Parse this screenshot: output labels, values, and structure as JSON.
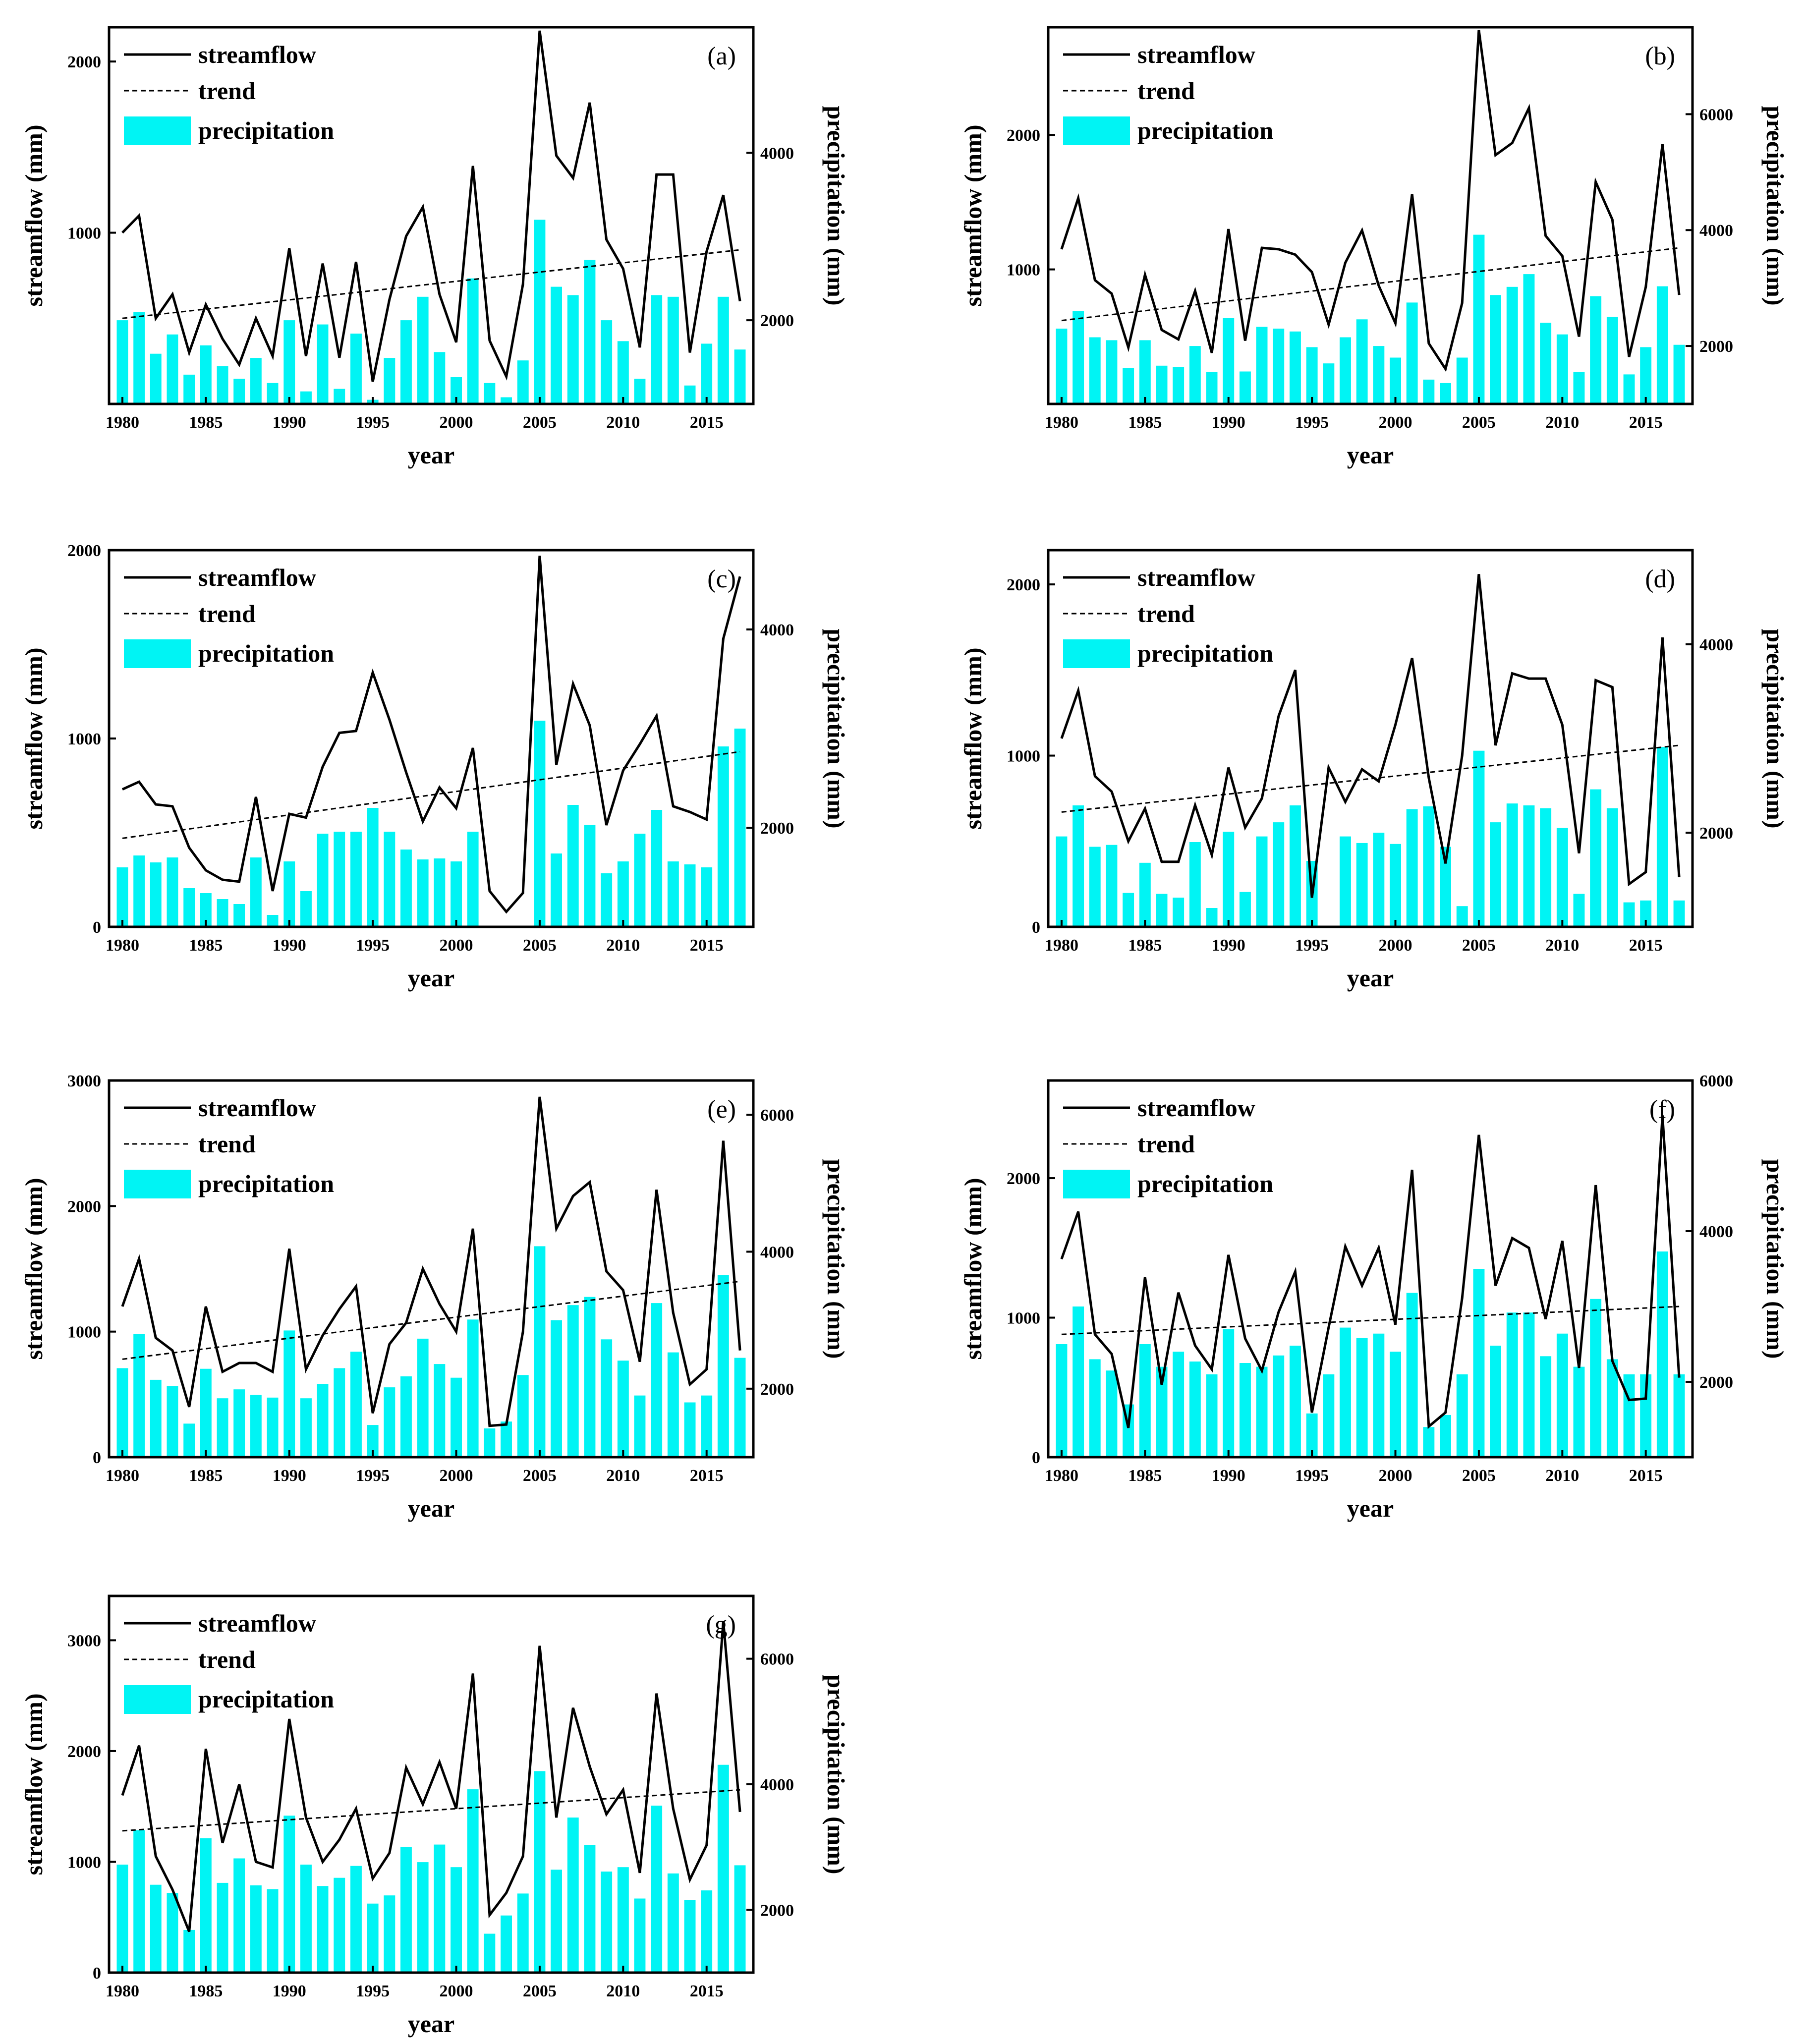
{
  "figure": {
    "x_axis_label": "year",
    "left_axis_label": "streamflow (mm)",
    "right_axis_label": "precipitation (mm)",
    "legend": {
      "streamflow": "streamflow",
      "trend": "trend",
      "precipitation": "precipitation"
    },
    "colors": {
      "bar": "#00f4f4",
      "line": "#000000",
      "axis": "#000000"
    }
  },
  "chart_data": [
    {
      "type": "bar+line",
      "panel_label": "(a)",
      "years": [
        1980,
        1981,
        1982,
        1983,
        1984,
        1985,
        1986,
        1987,
        1988,
        1989,
        1990,
        1991,
        1992,
        1993,
        1994,
        1995,
        1996,
        1997,
        1998,
        1999,
        2000,
        2001,
        2002,
        2003,
        2004,
        2005,
        2006,
        2007,
        2008,
        2009,
        2010,
        2011,
        2012,
        2013,
        2014,
        2015,
        2016,
        2017
      ],
      "streamflow": [
        1000,
        1100,
        500,
        640,
        300,
        580,
        380,
        230,
        500,
        280,
        910,
        280,
        820,
        270,
        830,
        130,
        610,
        980,
        1150,
        640,
        360,
        1390,
        370,
        160,
        700,
        2180,
        1450,
        1320,
        1760,
        960,
        790,
        330,
        1340,
        1340,
        300,
        890,
        1220,
        600
      ],
      "trend": [
        [
          1980,
          500
        ],
        [
          2017,
          900
        ]
      ],
      "precipitation": [
        2000,
        2100,
        1600,
        1830,
        1350,
        1700,
        1450,
        1300,
        1550,
        1250,
        2000,
        1150,
        1950,
        1180,
        1840,
        1050,
        1550,
        2000,
        2280,
        1620,
        1320,
        2500,
        1250,
        1080,
        1520,
        3200,
        2400,
        2300,
        2720,
        2000,
        1750,
        1300,
        2300,
        2280,
        1220,
        1720,
        2280,
        1650
      ],
      "ylim_left": [
        0,
        2200
      ],
      "yticks_left": [
        1000,
        2000
      ],
      "ylim_right": [
        1000,
        5500
      ],
      "yticks_right": [
        2000,
        4000
      ],
      "xticks": [
        1980,
        1985,
        1990,
        1995,
        2000,
        2005,
        2010,
        2015
      ]
    },
    {
      "type": "bar+line",
      "panel_label": "(b)",
      "years": [
        1980,
        1981,
        1982,
        1983,
        1984,
        1985,
        1986,
        1987,
        1988,
        1989,
        1990,
        1991,
        1992,
        1993,
        1994,
        1995,
        1996,
        1997,
        1998,
        1999,
        2000,
        2001,
        2002,
        2003,
        2004,
        2005,
        2006,
        2007,
        2008,
        2009,
        2010,
        2011,
        2012,
        2013,
        2014,
        2015,
        2016,
        2017
      ],
      "streamflow": [
        1150,
        1530,
        920,
        820,
        420,
        960,
        550,
        480,
        840,
        380,
        1300,
        470,
        1160,
        1150,
        1110,
        980,
        590,
        1050,
        1290,
        880,
        600,
        1560,
        450,
        260,
        750,
        2780,
        1850,
        1940,
        2200,
        1250,
        1100,
        500,
        1650,
        1370,
        350,
        870,
        1930,
        810
      ],
      "trend": [
        [
          1980,
          620
        ],
        [
          2017,
          1160
        ]
      ],
      "precipitation": [
        2300,
        2600,
        2150,
        2100,
        1620,
        2100,
        1660,
        1640,
        2000,
        1550,
        2480,
        1560,
        2330,
        2300,
        2250,
        1980,
        1700,
        2150,
        2460,
        2000,
        1800,
        2750,
        1420,
        1360,
        1800,
        3920,
        2880,
        3020,
        3240,
        2400,
        2200,
        1550,
        2860,
        2500,
        1510,
        1980,
        3030,
        2020
      ],
      "ylim_left": [
        0,
        2800
      ],
      "yticks_left": [
        1000,
        2000
      ],
      "ylim_right": [
        1000,
        7500
      ],
      "yticks_right": [
        2000,
        4000,
        6000
      ],
      "xticks": [
        1980,
        1985,
        1990,
        1995,
        2000,
        2005,
        2010,
        2015
      ]
    },
    {
      "type": "bar+line",
      "panel_label": "(c)",
      "years": [
        1980,
        1981,
        1982,
        1983,
        1984,
        1985,
        1986,
        1987,
        1988,
        1989,
        1990,
        1991,
        1992,
        1993,
        1994,
        1995,
        1996,
        1997,
        1998,
        1999,
        2000,
        2001,
        2002,
        2003,
        2004,
        2005,
        2006,
        2007,
        2008,
        2009,
        2010,
        2011,
        2012,
        2013,
        2014,
        2015,
        2016,
        2017
      ],
      "streamflow": [
        730,
        770,
        650,
        640,
        420,
        300,
        250,
        240,
        690,
        190,
        600,
        580,
        850,
        1030,
        1040,
        1350,
        1100,
        820,
        560,
        740,
        630,
        950,
        190,
        80,
        180,
        1970,
        860,
        1290,
        1070,
        540,
        830,
        970,
        1120,
        640,
        610,
        570,
        1530,
        1860
      ],
      "trend": [
        [
          1980,
          470
        ],
        [
          2017,
          930
        ]
      ],
      "precipitation": [
        1600,
        1720,
        1650,
        1700,
        1390,
        1340,
        1280,
        1230,
        1700,
        1120,
        1660,
        1360,
        1940,
        1960,
        1960,
        2200,
        1960,
        1780,
        1680,
        1690,
        1660,
        1960,
        1010,
        1010,
        1010,
        3080,
        1740,
        2230,
        2030,
        1540,
        1660,
        1940,
        2180,
        1660,
        1630,
        1600,
        2820,
        3000
      ],
      "ylim_left": [
        0,
        2000
      ],
      "yticks_left": [
        0,
        1000,
        2000
      ],
      "ylim_right": [
        1000,
        4800
      ],
      "yticks_right": [
        2000,
        4000
      ],
      "xticks": [
        1980,
        1985,
        1990,
        1995,
        2000,
        2005,
        2010,
        2015
      ]
    },
    {
      "type": "bar+line",
      "panel_label": "(d)",
      "years": [
        1980,
        1981,
        1982,
        1983,
        1984,
        1985,
        1986,
        1987,
        1988,
        1989,
        1990,
        1991,
        1992,
        1993,
        1994,
        1995,
        1996,
        1997,
        1998,
        1999,
        2000,
        2001,
        2002,
        2003,
        2004,
        2005,
        2006,
        2007,
        2008,
        2009,
        2010,
        2011,
        2012,
        2013,
        2014,
        2015,
        2016,
        2017
      ],
      "streamflow": [
        1100,
        1380,
        880,
        790,
        500,
        690,
        380,
        380,
        710,
        420,
        930,
        580,
        750,
        1230,
        1500,
        170,
        930,
        730,
        920,
        850,
        1180,
        1570,
        870,
        370,
        1000,
        2060,
        1060,
        1480,
        1450,
        1450,
        1180,
        430,
        1440,
        1400,
        250,
        320,
        1690,
        290
      ],
      "trend": [
        [
          1980,
          670
        ],
        [
          2017,
          1060
        ]
      ],
      "precipitation": [
        1960,
        2290,
        1850,
        1870,
        1360,
        1680,
        1350,
        1310,
        1900,
        1200,
        2010,
        1370,
        1960,
        2110,
        2290,
        1700,
        1010,
        1960,
        1890,
        2000,
        1880,
        2250,
        2280,
        1850,
        1220,
        2870,
        2110,
        2310,
        2290,
        2260,
        2050,
        1350,
        2460,
        2260,
        1260,
        1280,
        2910,
        1280
      ],
      "ylim_left": [
        0,
        2200
      ],
      "yticks_left": [
        0,
        1000,
        2000
      ],
      "ylim_right": [
        1000,
        5000
      ],
      "yticks_right": [
        2000,
        4000
      ],
      "xticks": [
        1980,
        1985,
        1990,
        1995,
        2000,
        2005,
        2010,
        2015
      ]
    },
    {
      "type": "bar+line",
      "panel_label": "(e)",
      "years": [
        1980,
        1981,
        1982,
        1983,
        1984,
        1985,
        1986,
        1987,
        1988,
        1989,
        1990,
        1991,
        1992,
        1993,
        1994,
        1995,
        1996,
        1997,
        1998,
        1999,
        2000,
        2001,
        2002,
        2003,
        2004,
        2005,
        2006,
        2007,
        2008,
        2009,
        2010,
        2011,
        2012,
        2013,
        2014,
        2015,
        2016,
        2017
      ],
      "streamflow": [
        1200,
        1580,
        950,
        850,
        400,
        1200,
        680,
        750,
        750,
        680,
        1660,
        700,
        970,
        1180,
        1360,
        350,
        900,
        1070,
        1500,
        1220,
        1000,
        1820,
        250,
        260,
        1000,
        2870,
        1820,
        2080,
        2190,
        1480,
        1330,
        760,
        2130,
        1150,
        580,
        700,
        2520,
        850
      ],
      "trend": [
        [
          1980,
          780
        ],
        [
          2017,
          1400
        ]
      ],
      "precipitation": [
        2300,
        2800,
        2130,
        2040,
        1490,
        2290,
        1860,
        1990,
        1910,
        1870,
        2850,
        1860,
        2070,
        2300,
        2540,
        1470,
        2020,
        2180,
        2730,
        2360,
        2160,
        3010,
        1420,
        1520,
        2200,
        4080,
        3000,
        3220,
        3340,
        2720,
        2410,
        1900,
        3250,
        2530,
        1800,
        1900,
        3660,
        2450
      ],
      "ylim_left": [
        0,
        3000
      ],
      "yticks_left": [
        0,
        1000,
        2000,
        3000
      ],
      "ylim_right": [
        1000,
        6500
      ],
      "yticks_right": [
        2000,
        4000,
        6000
      ],
      "xticks": [
        1980,
        1985,
        1990,
        1995,
        2000,
        2005,
        2010,
        2015
      ]
    },
    {
      "type": "bar+line",
      "panel_label": "(f)",
      "years": [
        1980,
        1981,
        1982,
        1983,
        1984,
        1985,
        1986,
        1987,
        1988,
        1989,
        1990,
        1991,
        1992,
        1993,
        1994,
        1995,
        1996,
        1997,
        1998,
        1999,
        2000,
        2001,
        2002,
        2003,
        2004,
        2005,
        2006,
        2007,
        2008,
        2009,
        2010,
        2011,
        2012,
        2013,
        2014,
        2015,
        2016,
        2017
      ],
      "streamflow": [
        1420,
        1760,
        880,
        740,
        210,
        1290,
        520,
        1180,
        800,
        630,
        1450,
        850,
        620,
        1040,
        1330,
        320,
        930,
        1510,
        1230,
        1500,
        950,
        2060,
        220,
        320,
        1140,
        2310,
        1230,
        1570,
        1500,
        990,
        1550,
        640,
        1950,
        690,
        410,
        420,
        2450,
        570
      ],
      "trend": [
        [
          1980,
          880
        ],
        [
          2017,
          1080
        ]
      ],
      "precipitation": [
        2500,
        3000,
        2300,
        2150,
        1700,
        2500,
        2200,
        2400,
        2270,
        2100,
        2700,
        2250,
        2200,
        2350,
        2480,
        1580,
        2100,
        2720,
        2580,
        2640,
        2400,
        3180,
        1400,
        1560,
        2100,
        3500,
        2480,
        2920,
        2920,
        2340,
        2640,
        2200,
        3100,
        2300,
        2100,
        2100,
        3730,
        2100
      ],
      "ylim_left": [
        0,
        2700
      ],
      "yticks_left": [
        0,
        1000,
        2000
      ],
      "ylim_right": [
        1000,
        6000
      ],
      "yticks_right": [
        2000,
        4000,
        6000
      ],
      "xticks": [
        1980,
        1985,
        1990,
        1995,
        2000,
        2005,
        2010,
        2015
      ]
    },
    {
      "type": "bar+line",
      "panel_label": "(g)",
      "years": [
        1980,
        1981,
        1982,
        1983,
        1984,
        1985,
        1986,
        1987,
        1988,
        1989,
        1990,
        1991,
        1992,
        1993,
        1994,
        1995,
        1996,
        1997,
        1998,
        1999,
        2000,
        2001,
        2002,
        2003,
        2004,
        2005,
        2006,
        2007,
        2008,
        2009,
        2010,
        2011,
        2012,
        2013,
        2014,
        2015,
        2016,
        2017
      ],
      "streamflow": [
        1600,
        2050,
        1050,
        750,
        370,
        2020,
        1170,
        1700,
        1000,
        950,
        2290,
        1400,
        1000,
        1200,
        1480,
        850,
        1080,
        1850,
        1520,
        1900,
        1480,
        2700,
        520,
        720,
        1050,
        2950,
        1400,
        2390,
        1860,
        1430,
        1650,
        900,
        2520,
        1480,
        840,
        1150,
        3170,
        1450
      ],
      "trend": [
        [
          1980,
          1280
        ],
        [
          2017,
          1650
        ]
      ],
      "precipitation": [
        2720,
        3270,
        2400,
        2270,
        1680,
        3140,
        2430,
        2820,
        2390,
        2330,
        3500,
        2720,
        2380,
        2510,
        2700,
        2100,
        2230,
        3000,
        2760,
        3040,
        2680,
        3920,
        1620,
        1910,
        2260,
        4210,
        2640,
        3470,
        3030,
        2610,
        2680,
        2180,
        3660,
        2580,
        2160,
        2310,
        4310,
        2710
      ],
      "ylim_left": [
        0,
        3400
      ],
      "yticks_left": [
        0,
        1000,
        2000,
        3000
      ],
      "ylim_right": [
        1000,
        7000
      ],
      "yticks_right": [
        2000,
        4000,
        6000
      ],
      "xticks": [
        1980,
        1985,
        1990,
        1995,
        2000,
        2005,
        2010,
        2015
      ]
    }
  ]
}
